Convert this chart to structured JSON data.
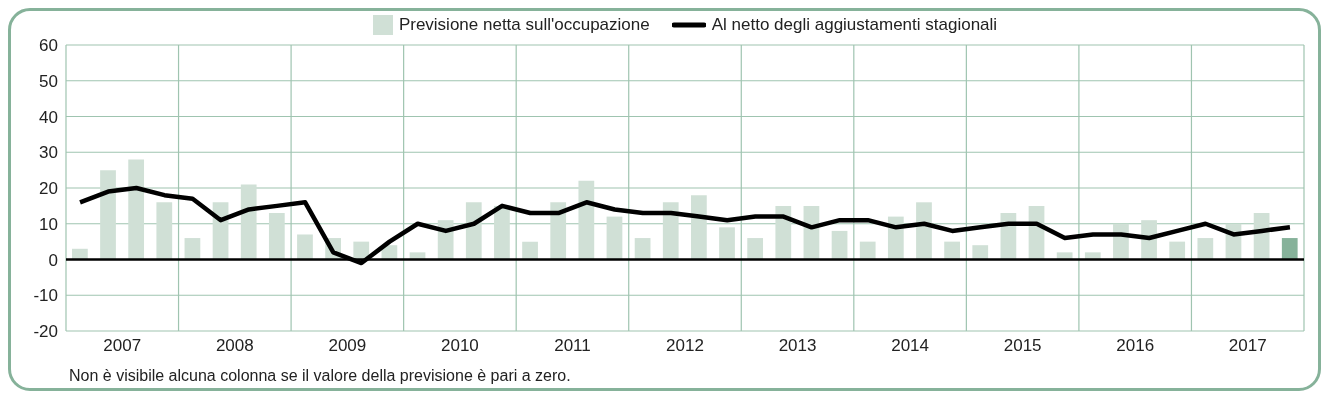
{
  "chart_data": {
    "type": "bar",
    "x": [
      2007.125,
      2007.375,
      2007.625,
      2007.875,
      2008.125,
      2008.375,
      2008.625,
      2008.875,
      2009.125,
      2009.375,
      2009.625,
      2009.875,
      2010.125,
      2010.375,
      2010.625,
      2010.875,
      2011.125,
      2011.375,
      2011.625,
      2011.875,
      2012.125,
      2012.375,
      2012.625,
      2012.875,
      2013.125,
      2013.375,
      2013.625,
      2013.875,
      2014.125,
      2014.375,
      2014.625,
      2014.875,
      2015.125,
      2015.375,
      2015.625,
      2015.875,
      2016.125,
      2016.375,
      2016.625,
      2016.875,
      2017.125,
      2017.375,
      2017.625,
      2017.875
    ],
    "series": [
      {
        "name": "Previsione netta sull'occupazione",
        "color": "#d0e0d6",
        "colors": [
          "#d0e0d6",
          "#d0e0d6",
          "#d0e0d6",
          "#d0e0d6",
          "#d0e0d6",
          "#d0e0d6",
          "#d0e0d6",
          "#d0e0d6",
          "#d0e0d6",
          "#d0e0d6",
          "#d0e0d6",
          "#d0e0d6",
          "#d0e0d6",
          "#d0e0d6",
          "#d0e0d6",
          "#d0e0d6",
          "#d0e0d6",
          "#d0e0d6",
          "#d0e0d6",
          "#d0e0d6",
          "#d0e0d6",
          "#d0e0d6",
          "#d0e0d6",
          "#d0e0d6",
          "#d0e0d6",
          "#d0e0d6",
          "#d0e0d6",
          "#d0e0d6",
          "#d0e0d6",
          "#d0e0d6",
          "#d0e0d6",
          "#d0e0d6",
          "#d0e0d6",
          "#d0e0d6",
          "#d0e0d6",
          "#d0e0d6",
          "#d0e0d6",
          "#d0e0d6",
          "#d0e0d6",
          "#d0e0d6",
          "#d0e0d6",
          "#d0e0d6",
          "#d0e0d6",
          "#86b29a"
        ],
        "values": [
          3,
          25,
          28,
          16,
          6,
          16,
          21,
          13,
          7,
          6,
          5,
          4,
          2,
          11,
          16,
          15,
          5,
          16,
          22,
          12,
          6,
          16,
          18,
          9,
          6,
          15,
          15,
          8,
          5,
          12,
          16,
          5,
          4,
          13,
          15,
          2,
          2,
          10,
          11,
          5,
          6,
          10,
          13,
          6
        ]
      },
      {
        "name": "Al netto degli aggiustamenti stagionali",
        "type": "line",
        "color": "#000000",
        "values": [
          16,
          19,
          20,
          18,
          17,
          11,
          14,
          15,
          16,
          2,
          -1,
          5,
          10,
          8,
          10,
          15,
          13,
          13,
          16,
          14,
          13,
          13,
          12,
          11,
          12,
          12,
          9,
          11,
          11,
          9,
          10,
          8,
          9,
          10,
          10,
          6,
          7,
          7,
          6,
          8,
          10,
          7,
          8,
          9
        ]
      }
    ],
    "xlim": [
      2007,
      2018
    ],
    "xticks": [
      {
        "value": 2007.5,
        "label": "2007"
      },
      {
        "value": 2008,
        "label": null
      },
      {
        "value": 2008.5,
        "label": "2008"
      },
      {
        "value": 2009,
        "label": null
      },
      {
        "value": 2009.5,
        "label": "2009"
      },
      {
        "value": 2010,
        "label": null
      },
      {
        "value": 2010.5,
        "label": "2010"
      },
      {
        "value": 2011,
        "label": null
      },
      {
        "value": 2011.5,
        "label": "2011"
      },
      {
        "value": 2012,
        "label": null
      },
      {
        "value": 2012.5,
        "label": "2012"
      },
      {
        "value": 2013,
        "label": null
      },
      {
        "value": 2013.5,
        "label": "2013"
      },
      {
        "value": 2014,
        "label": null
      },
      {
        "value": 2014.5,
        "label": "2014"
      },
      {
        "value": 2015,
        "label": null
      },
      {
        "value": 2015.5,
        "label": "2015"
      },
      {
        "value": 2016,
        "label": null
      },
      {
        "value": 2016.5,
        "label": "2016"
      },
      {
        "value": 2017,
        "label": null
      },
      {
        "value": 2017.5,
        "label": "2017"
      }
    ],
    "ylim": [
      -20,
      60
    ],
    "yticks": [
      -20,
      -10,
      0,
      10,
      20,
      30,
      40,
      50,
      60
    ],
    "grid": true,
    "legend": "top",
    "ref_lines": [
      {
        "axis": "y",
        "value": 0,
        "color": "#000000"
      }
    ],
    "annotations": [
      "Non è visibile alcuna colonna se il valore della previsione è pari a zero."
    ]
  }
}
